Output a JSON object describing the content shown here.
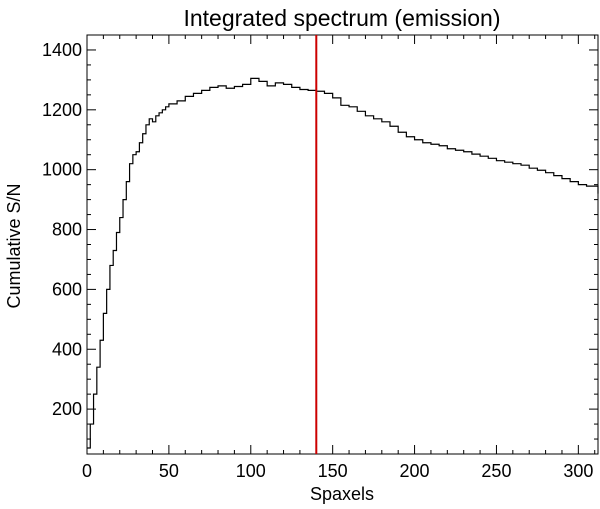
{
  "chart_data": {
    "type": "line",
    "title": "Integrated spectrum (emission)",
    "xlabel": "Spaxels",
    "ylabel": "Cumulative S/N",
    "xlim": [
      0,
      312
    ],
    "ylim": [
      50,
      1450
    ],
    "x_ticks": [
      0,
      50,
      100,
      150,
      200,
      250,
      300
    ],
    "y_ticks": [
      200,
      400,
      600,
      800,
      1000,
      1200,
      1400
    ],
    "x_minor_step": 10,
    "y_minor_step": 50,
    "grid": false,
    "line_style": "step",
    "colors": {
      "series": "#000000",
      "marker": "#cc0000",
      "axes": "#000000"
    },
    "vline": {
      "x": 140
    },
    "series": [
      {
        "x": [
          0,
          2,
          4,
          6,
          8,
          10,
          12,
          14,
          16,
          18,
          20,
          22,
          24,
          26,
          28,
          30,
          32,
          34,
          36,
          38,
          40,
          42,
          44,
          46,
          48,
          50,
          55,
          60,
          65,
          70,
          75,
          80,
          85,
          90,
          95,
          100,
          105,
          110,
          115,
          120,
          125,
          130,
          135,
          140,
          145,
          150,
          155,
          160,
          165,
          170,
          175,
          180,
          185,
          190,
          195,
          200,
          205,
          210,
          215,
          220,
          225,
          230,
          235,
          240,
          245,
          250,
          255,
          260,
          265,
          270,
          275,
          280,
          285,
          290,
          295,
          300,
          305,
          312
        ],
        "y": [
          70,
          150,
          250,
          340,
          430,
          520,
          600,
          680,
          730,
          790,
          840,
          900,
          960,
          1020,
          1050,
          1060,
          1090,
          1120,
          1150,
          1170,
          1160,
          1180,
          1190,
          1200,
          1210,
          1220,
          1230,
          1245,
          1255,
          1265,
          1275,
          1280,
          1272,
          1278,
          1285,
          1305,
          1295,
          1280,
          1290,
          1285,
          1275,
          1268,
          1265,
          1262,
          1255,
          1240,
          1215,
          1210,
          1195,
          1180,
          1170,
          1160,
          1145,
          1125,
          1110,
          1100,
          1090,
          1085,
          1080,
          1070,
          1065,
          1060,
          1052,
          1045,
          1038,
          1030,
          1025,
          1020,
          1015,
          1005,
          998,
          990,
          980,
          970,
          960,
          950,
          945,
          920
        ]
      }
    ]
  }
}
